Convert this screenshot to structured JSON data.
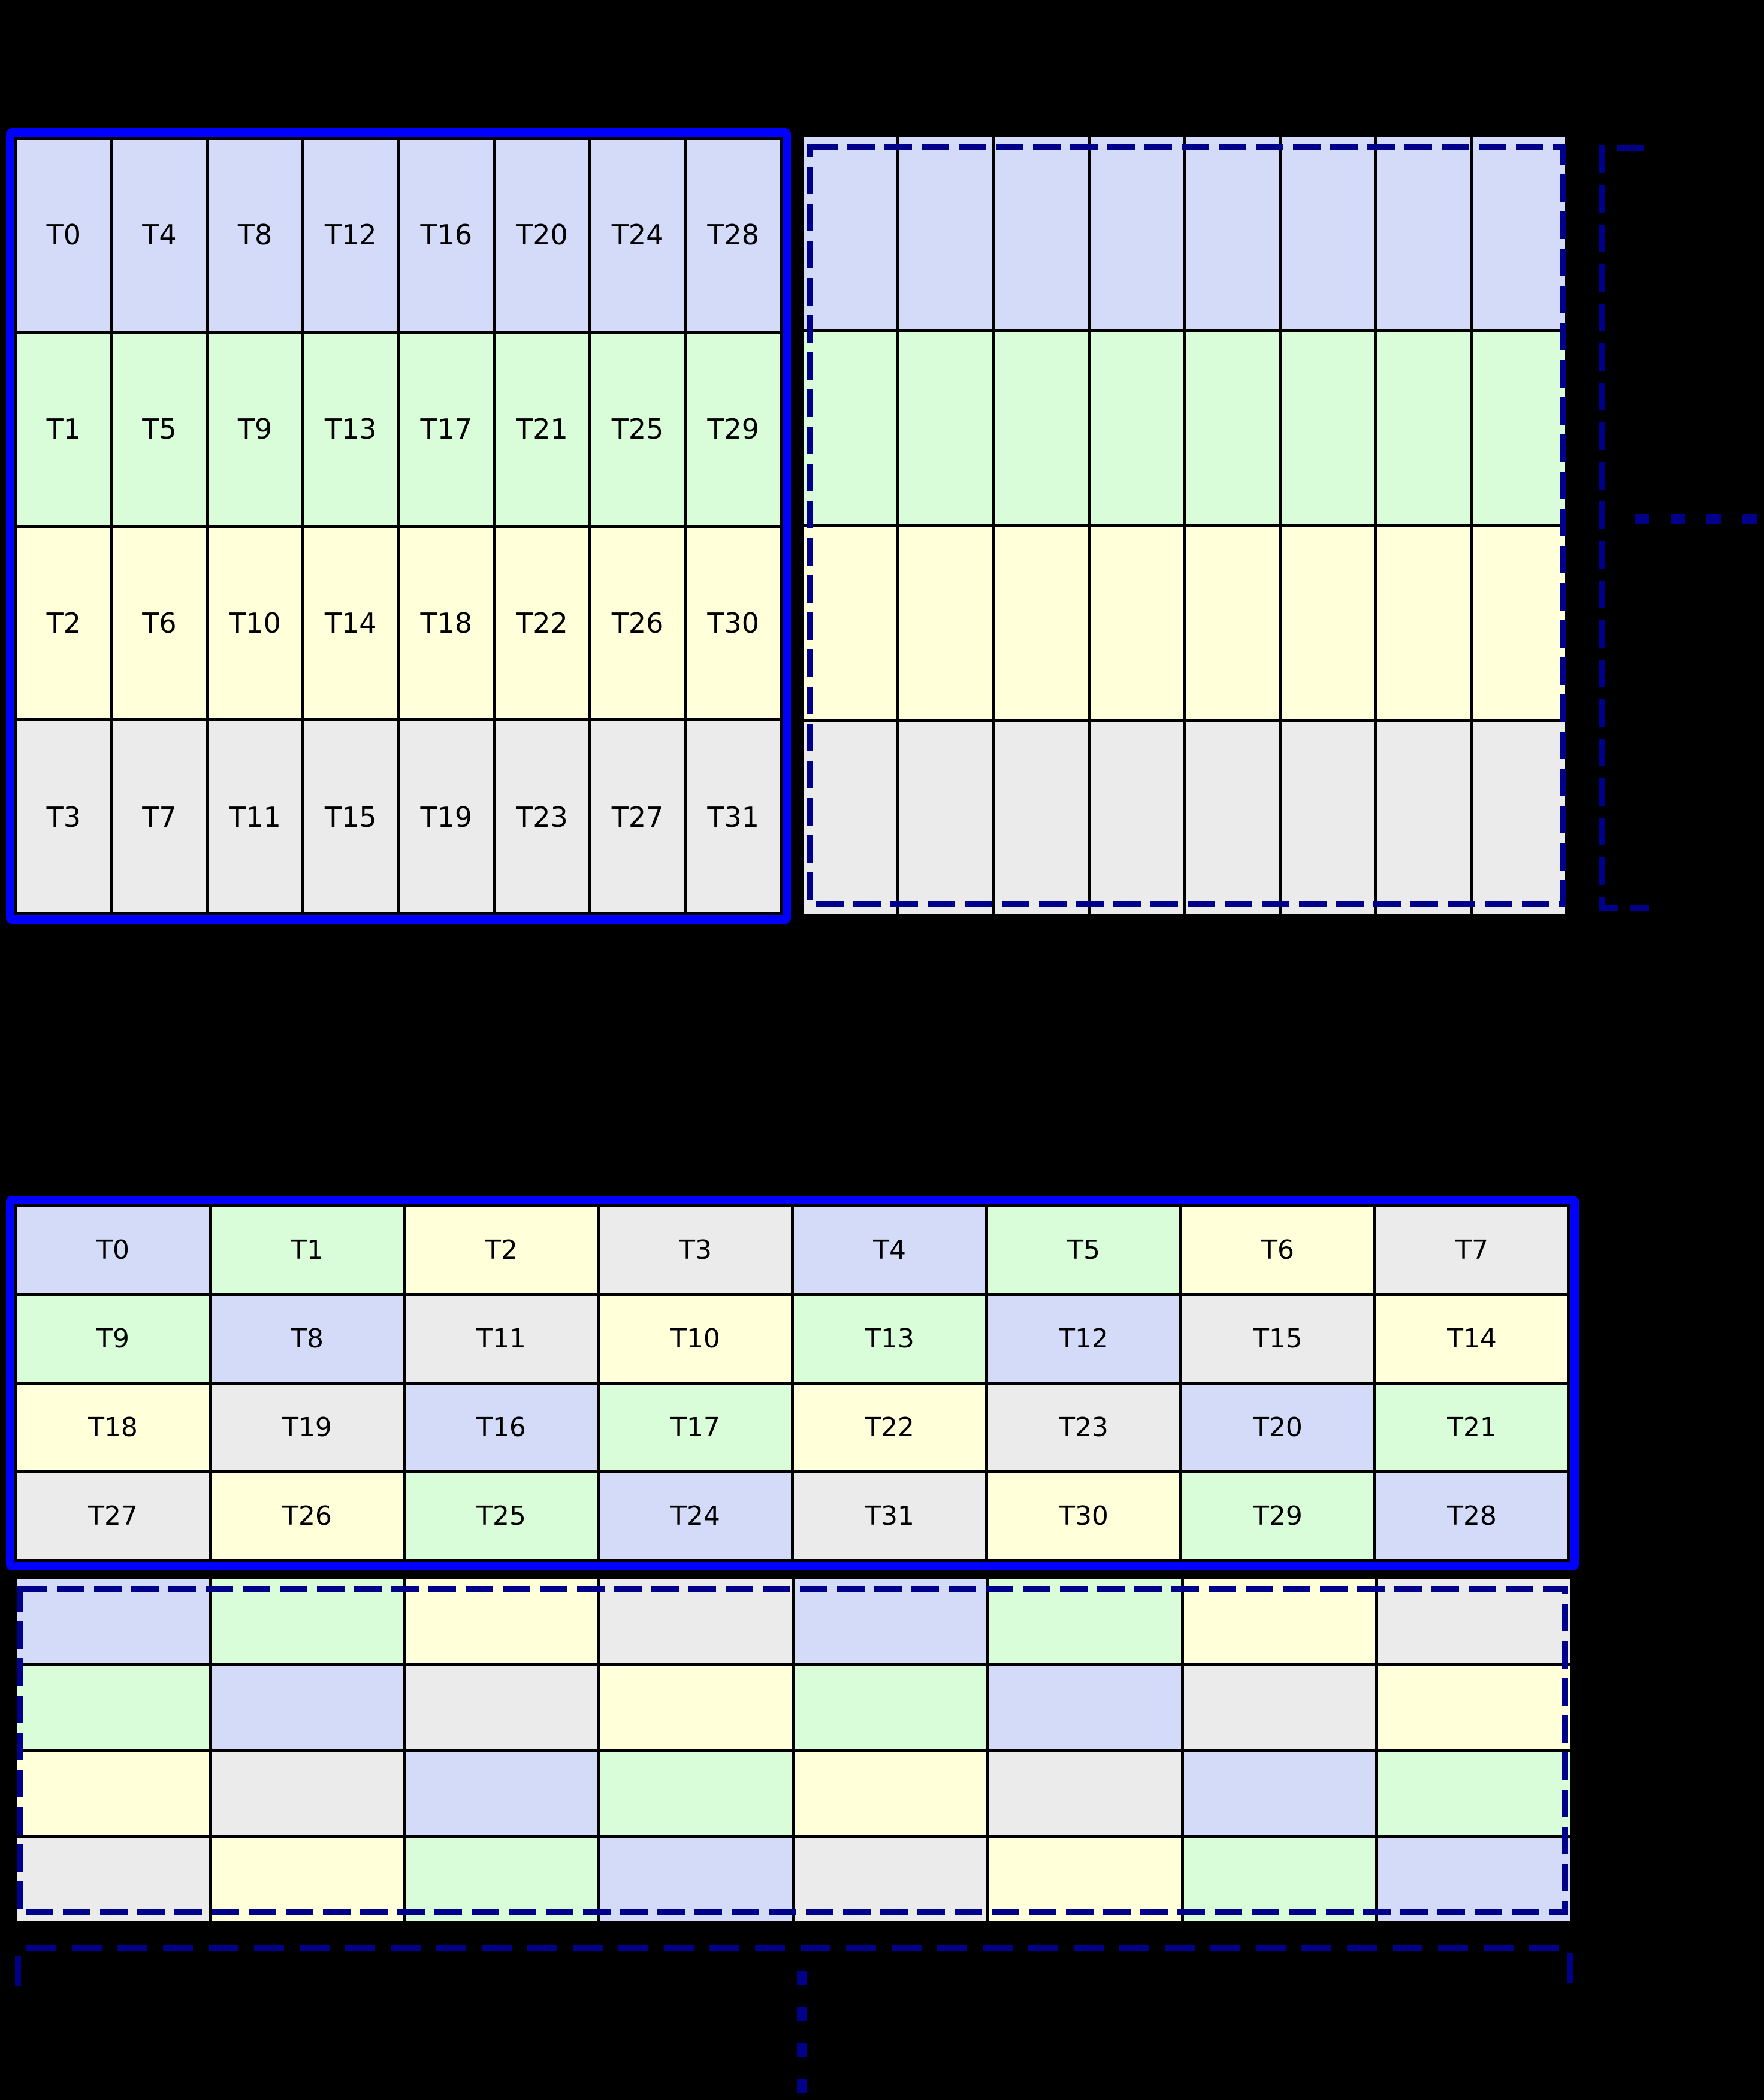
{
  "palette": {
    "blue": "#d4dbf8",
    "green": "#d8fdd8",
    "yellow": "#ffffd9",
    "gray": "#ebebeb",
    "border_blue": "#0000ff",
    "navy": "#00008b",
    "background": "#000000",
    "grid_line": "#000000",
    "text": "#000000"
  },
  "figure1": {
    "warp_table": {
      "rows": [
        {
          "colors": [
            "blue",
            "blue",
            "blue",
            "blue",
            "blue",
            "blue",
            "blue",
            "blue"
          ],
          "labels": [
            "T0",
            "T4",
            "T8",
            "T12",
            "T16",
            "T20",
            "T24",
            "T28"
          ]
        },
        {
          "colors": [
            "green",
            "green",
            "green",
            "green",
            "green",
            "green",
            "green",
            "green"
          ],
          "labels": [
            "T1",
            "T5",
            "T9",
            "T13",
            "T17",
            "T21",
            "T25",
            "T29"
          ]
        },
        {
          "colors": [
            "yellow",
            "yellow",
            "yellow",
            "yellow",
            "yellow",
            "yellow",
            "yellow",
            "yellow"
          ],
          "labels": [
            "T2",
            "T6",
            "T10",
            "T14",
            "T18",
            "T22",
            "T26",
            "T30"
          ]
        },
        {
          "colors": [
            "gray",
            "gray",
            "gray",
            "gray",
            "gray",
            "gray",
            "gray",
            "gray"
          ],
          "labels": [
            "T3",
            "T7",
            "T11",
            "T15",
            "T19",
            "T23",
            "T27",
            "T31"
          ]
        }
      ]
    },
    "continuation_grid": {
      "rows": [
        {
          "colors": [
            "blue",
            "blue",
            "blue",
            "blue",
            "blue",
            "blue",
            "blue",
            "blue"
          ],
          "labels": [
            "",
            "",
            "",
            "",
            "",
            "",
            "",
            ""
          ]
        },
        {
          "colors": [
            "green",
            "green",
            "green",
            "green",
            "green",
            "green",
            "green",
            "green"
          ],
          "labels": [
            "",
            "",
            "",
            "",
            "",
            "",
            "",
            ""
          ]
        },
        {
          "colors": [
            "yellow",
            "yellow",
            "yellow",
            "yellow",
            "yellow",
            "yellow",
            "yellow",
            "yellow"
          ],
          "labels": [
            "",
            "",
            "",
            "",
            "",
            "",
            "",
            ""
          ]
        },
        {
          "colors": [
            "gray",
            "gray",
            "gray",
            "gray",
            "gray",
            "gray",
            "gray",
            "gray"
          ],
          "labels": [
            "",
            "",
            "",
            "",
            "",
            "",
            "",
            ""
          ]
        }
      ]
    },
    "ellipsis_dash_count": 4
  },
  "figure2": {
    "warp_table": {
      "rows": [
        {
          "colors": [
            "blue",
            "green",
            "yellow",
            "gray",
            "blue",
            "green",
            "yellow",
            "gray"
          ],
          "labels": [
            "T0",
            "T1",
            "T2",
            "T3",
            "T4",
            "T5",
            "T6",
            "T7"
          ]
        },
        {
          "colors": [
            "green",
            "blue",
            "gray",
            "yellow",
            "green",
            "blue",
            "gray",
            "yellow"
          ],
          "labels": [
            "T9",
            "T8",
            "T11",
            "T10",
            "T13",
            "T12",
            "T15",
            "T14"
          ]
        },
        {
          "colors": [
            "yellow",
            "gray",
            "blue",
            "green",
            "yellow",
            "gray",
            "blue",
            "green"
          ],
          "labels": [
            "T18",
            "T19",
            "T16",
            "T17",
            "T22",
            "T23",
            "T20",
            "T21"
          ]
        },
        {
          "colors": [
            "gray",
            "yellow",
            "green",
            "blue",
            "gray",
            "yellow",
            "green",
            "blue"
          ],
          "labels": [
            "T27",
            "T26",
            "T25",
            "T24",
            "T31",
            "T30",
            "T29",
            "T28"
          ]
        }
      ]
    },
    "continuation_grid": {
      "rows": [
        {
          "colors": [
            "blue",
            "green",
            "yellow",
            "gray",
            "blue",
            "green",
            "yellow",
            "gray"
          ],
          "labels": [
            "",
            "",
            "",
            "",
            "",
            "",
            "",
            ""
          ]
        },
        {
          "colors": [
            "green",
            "blue",
            "gray",
            "yellow",
            "green",
            "blue",
            "gray",
            "yellow"
          ],
          "labels": [
            "",
            "",
            "",
            "",
            "",
            "",
            "",
            ""
          ]
        },
        {
          "colors": [
            "yellow",
            "gray",
            "blue",
            "green",
            "yellow",
            "gray",
            "blue",
            "green"
          ],
          "labels": [
            "",
            "",
            "",
            "",
            "",
            "",
            "",
            ""
          ]
        },
        {
          "colors": [
            "gray",
            "yellow",
            "green",
            "blue",
            "gray",
            "yellow",
            "green",
            "blue"
          ],
          "labels": [
            "",
            "",
            "",
            "",
            "",
            "",
            "",
            ""
          ]
        }
      ]
    },
    "ellipsis_dash_count": 4
  }
}
